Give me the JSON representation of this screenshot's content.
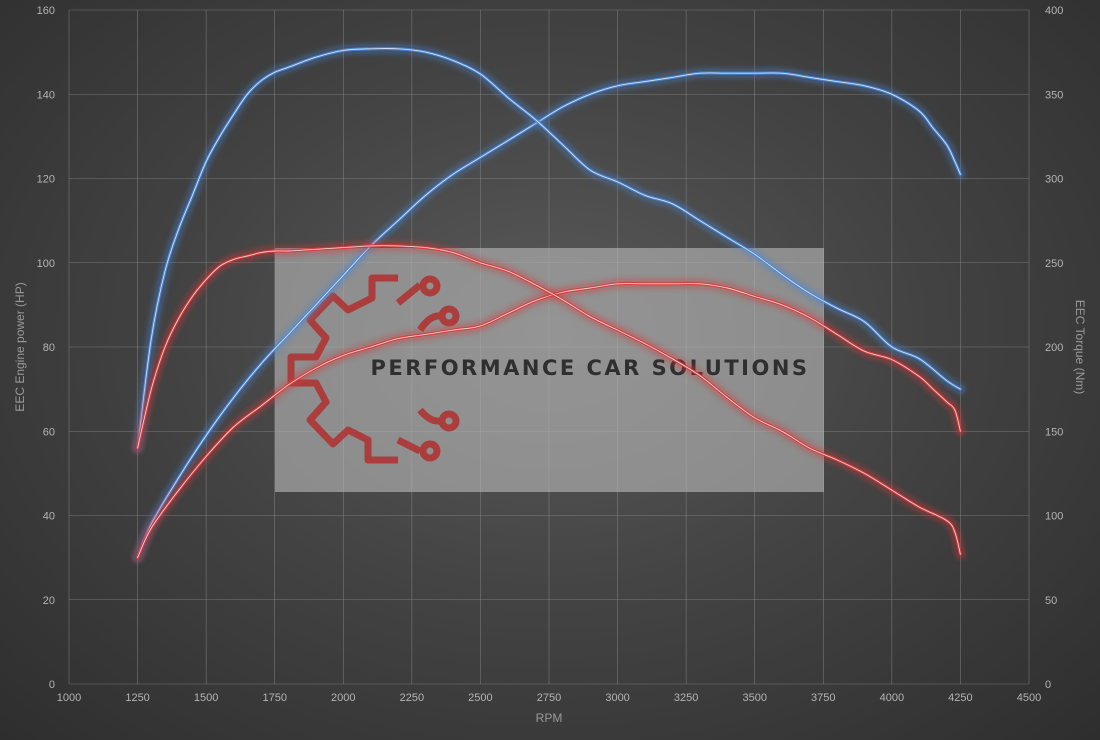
{
  "chart_data": {
    "type": "line",
    "title": "",
    "xlabel": "RPM",
    "ylabel_left": "EEC Engine power (HP)",
    "ylabel_right": "EEC Torque (Nm)",
    "xlim": [
      1000,
      4500
    ],
    "ylim_left": [
      0,
      160
    ],
    "ylim_right": [
      0,
      400
    ],
    "x_ticks": [
      "1000",
      "1250",
      "1500",
      "1750",
      "2000",
      "2250",
      "2500",
      "2750",
      "3000",
      "3250",
      "3500",
      "3750",
      "4000",
      "4250",
      "4500"
    ],
    "y_left_ticks": [
      "0",
      "20",
      "40",
      "60",
      "80",
      "100",
      "120",
      "140",
      "160"
    ],
    "y_right_ticks": [
      "0",
      "50",
      "100",
      "150",
      "200",
      "250",
      "300",
      "350",
      "400"
    ],
    "grid": true,
    "colors": {
      "tuned": "#4a86d6",
      "stock": "#d63a3a"
    },
    "series": [
      {
        "key": "tuned-power",
        "axis": "left",
        "color": "#4a86d6",
        "x": [
          1250,
          1300,
          1400,
          1500,
          1600,
          1700,
          1800,
          1900,
          2000,
          2100,
          2200,
          2300,
          2400,
          2500,
          2600,
          2700,
          2800,
          2900,
          3000,
          3100,
          3200,
          3300,
          3400,
          3500,
          3600,
          3700,
          3800,
          3900,
          4000,
          4100,
          4150,
          4200,
          4230,
          4250
        ],
        "y": [
          30,
          38,
          49,
          59,
          68,
          76,
          83,
          90,
          97,
          104,
          110,
          116,
          121,
          125,
          129,
          133,
          137,
          140,
          142,
          143,
          144,
          145,
          145,
          145,
          145,
          144,
          143,
          142,
          140,
          136,
          132,
          128,
          124,
          121
        ]
      },
      {
        "key": "stock-power",
        "axis": "left",
        "color": "#d63a3a",
        "x": [
          1250,
          1300,
          1400,
          1500,
          1600,
          1700,
          1800,
          1900,
          2000,
          2100,
          2200,
          2300,
          2400,
          2500,
          2600,
          2700,
          2800,
          2900,
          3000,
          3100,
          3200,
          3300,
          3400,
          3500,
          3600,
          3700,
          3800,
          3900,
          4000,
          4100,
          4150,
          4200,
          4230,
          4250
        ],
        "y": [
          30,
          37,
          46,
          54,
          61,
          66,
          71,
          75,
          78,
          80,
          82,
          83,
          84,
          85,
          88,
          91,
          93,
          94,
          95,
          95,
          95,
          95,
          94,
          92,
          90,
          87,
          83,
          79,
          77,
          73,
          70,
          67,
          65,
          60
        ]
      },
      {
        "key": "tuned-torque",
        "axis": "right",
        "color": "#4a86d6",
        "x": [
          1250,
          1300,
          1350,
          1400,
          1450,
          1500,
          1550,
          1600,
          1650,
          1700,
          1750,
          1800,
          1900,
          2000,
          2100,
          2200,
          2300,
          2400,
          2500,
          2600,
          2700,
          2800,
          2900,
          3000,
          3100,
          3200,
          3300,
          3400,
          3500,
          3600,
          3700,
          3800,
          3900,
          4000,
          4100,
          4200,
          4250
        ],
        "y": [
          140,
          205,
          245,
          270,
          290,
          310,
          325,
          338,
          350,
          358,
          363,
          366,
          372,
          376,
          377,
          377,
          375,
          370,
          362,
          348,
          335,
          320,
          305,
          298,
          290,
          285,
          275,
          265,
          255,
          243,
          232,
          223,
          215,
          200,
          193,
          180,
          175
        ]
      },
      {
        "key": "stock-torque",
        "axis": "right",
        "color": "#d63a3a",
        "x": [
          1250,
          1300,
          1350,
          1400,
          1450,
          1500,
          1550,
          1600,
          1650,
          1700,
          1750,
          1800,
          1900,
          2000,
          2100,
          2200,
          2300,
          2400,
          2500,
          2600,
          2700,
          2800,
          2900,
          3000,
          3100,
          3200,
          3300,
          3400,
          3500,
          3600,
          3700,
          3800,
          3900,
          4000,
          4100,
          4200,
          4230,
          4250
        ],
        "y": [
          140,
          175,
          200,
          217,
          230,
          240,
          248,
          252,
          254,
          256,
          257,
          257,
          258,
          259,
          260,
          260,
          259,
          256,
          250,
          245,
          237,
          228,
          218,
          210,
          202,
          193,
          183,
          170,
          158,
          150,
          140,
          133,
          125,
          115,
          105,
          97,
          90,
          77
        ]
      }
    ]
  },
  "watermark": {
    "brand_name": "PERFORMANCE CAR SOLUTIONS",
    "logo": "gear-circuit-logo",
    "logo_color": "#b0302f"
  }
}
